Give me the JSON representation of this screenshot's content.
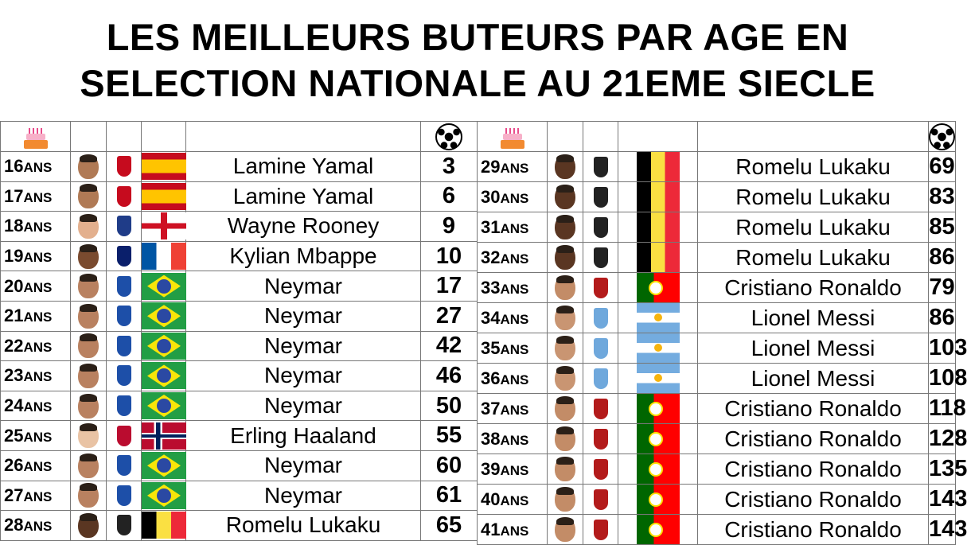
{
  "title": {
    "line1": "LES MEILLEURS BUTEURS PAR AGE EN",
    "line2": "SELECTION NATIONALE AU 21EME SIECLE"
  },
  "header_icons": {
    "age": "birthday-cake-icon",
    "goals": "soccer-ball-icon"
  },
  "colors": {
    "spain": "#c60b1e",
    "england": "#ce1124",
    "france": "#0055a4",
    "brazil": "#229e45",
    "norway": "#ba0c2f",
    "belgium": "#fae042",
    "portugal": "#006600",
    "argentina": "#74acdf"
  },
  "age_unit": "ANS",
  "left_rows": [
    {
      "age": "16",
      "player": "Lamine Yamal",
      "goals": "3",
      "country": "esp"
    },
    {
      "age": "17",
      "player": "Lamine Yamal",
      "goals": "6",
      "country": "esp"
    },
    {
      "age": "18",
      "player": "Wayne Rooney",
      "goals": "9",
      "country": "eng"
    },
    {
      "age": "19",
      "player": "Kylian Mbappe",
      "goals": "10",
      "country": "fra"
    },
    {
      "age": "20",
      "player": "Neymar",
      "goals": "17",
      "country": "bra"
    },
    {
      "age": "21",
      "player": "Neymar",
      "goals": "27",
      "country": "bra"
    },
    {
      "age": "22",
      "player": "Neymar",
      "goals": "42",
      "country": "bra"
    },
    {
      "age": "23",
      "player": "Neymar",
      "goals": "46",
      "country": "bra"
    },
    {
      "age": "24",
      "player": "Neymar",
      "goals": "50",
      "country": "bra"
    },
    {
      "age": "25",
      "player": "Erling Haaland",
      "goals": "55",
      "country": "nor"
    },
    {
      "age": "26",
      "player": "Neymar",
      "goals": "60",
      "country": "bra"
    },
    {
      "age": "27",
      "player": "Neymar",
      "goals": "61",
      "country": "bra"
    },
    {
      "age": "28",
      "player": "Romelu Lukaku",
      "goals": "65",
      "country": "bel"
    }
  ],
  "right_rows": [
    {
      "age": "29",
      "player": "Romelu Lukaku",
      "goals": "69",
      "country": "bel"
    },
    {
      "age": "30",
      "player": "Romelu Lukaku",
      "goals": "83",
      "country": "bel"
    },
    {
      "age": "31",
      "player": "Romelu Lukaku",
      "goals": "85",
      "country": "bel"
    },
    {
      "age": "32",
      "player": "Romelu Lukaku",
      "goals": "86",
      "country": "bel"
    },
    {
      "age": "33",
      "player": "Cristiano Ronaldo",
      "goals": "79",
      "country": "por"
    },
    {
      "age": "34",
      "player": "Lionel Messi",
      "goals": "86",
      "country": "arg"
    },
    {
      "age": "35",
      "player": "Lionel Messi",
      "goals": "103",
      "country": "arg"
    },
    {
      "age": "36",
      "player": "Lionel Messi",
      "goals": "108",
      "country": "arg"
    },
    {
      "age": "37",
      "player": "Cristiano Ronaldo",
      "goals": "118",
      "country": "por"
    },
    {
      "age": "38",
      "player": "Cristiano Ronaldo",
      "goals": "128",
      "country": "por"
    },
    {
      "age": "39",
      "player": "Cristiano Ronaldo",
      "goals": "135",
      "country": "por"
    },
    {
      "age": "40",
      "player": "Cristiano Ronaldo",
      "goals": "143",
      "country": "por"
    },
    {
      "age": "41",
      "player": "Cristiano Ronaldo",
      "goals": "143",
      "country": "por"
    }
  ]
}
